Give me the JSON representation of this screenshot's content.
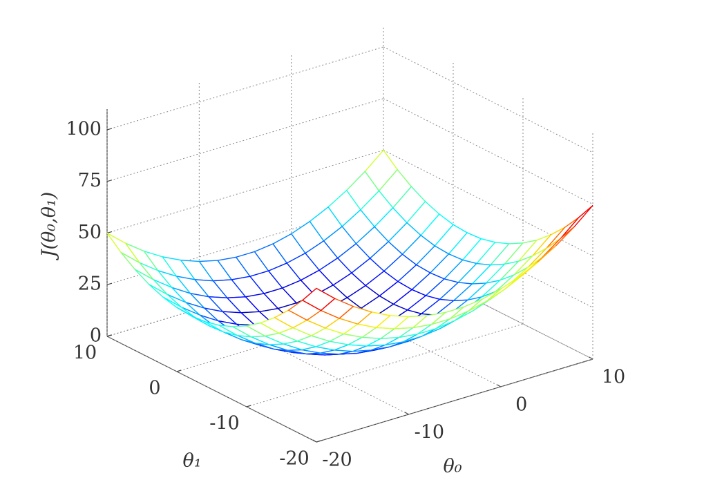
{
  "chart_data": {
    "type": "surface",
    "x_label": "θ₀",
    "y_label": "θ₁",
    "z_label": "J(θ₀,θ₁)",
    "x": [
      -20,
      -18,
      -16,
      -14,
      -12,
      -10,
      -8,
      -6,
      -4,
      -2,
      0,
      2,
      4,
      6,
      8,
      10
    ],
    "y": [
      -20,
      -18,
      -16,
      -14,
      -12,
      -10,
      -8,
      -6,
      -4,
      -2,
      0,
      2,
      4,
      6,
      8,
      10
    ],
    "z": [
      [
        74.4,
        66.8,
        60.3,
        54.9,
        50.5,
        47.3,
        45.1,
        44.0,
        44.0,
        45.1,
        47.3,
        50.5,
        54.9,
        60.3,
        66.8,
        74.4
      ],
      [
        65.2,
        57.6,
        51.1,
        45.7,
        41.3,
        38.1,
        35.9,
        34.8,
        34.8,
        35.9,
        38.1,
        41.3,
        45.7,
        51.1,
        57.6,
        65.2
      ],
      [
        57.0,
        49.5,
        43.0,
        37.5,
        33.2,
        29.9,
        27.8,
        26.7,
        26.7,
        27.8,
        29.9,
        33.2,
        37.5,
        43.0,
        49.5,
        57.0
      ],
      [
        50.0,
        42.4,
        35.9,
        30.5,
        26.2,
        22.9,
        20.7,
        19.6,
        19.6,
        20.7,
        22.9,
        26.2,
        30.5,
        35.9,
        42.4,
        50.0
      ],
      [
        44.0,
        36.4,
        29.9,
        24.5,
        20.2,
        16.9,
        14.8,
        13.7,
        13.7,
        14.8,
        16.9,
        20.2,
        24.5,
        29.9,
        36.4,
        44.0
      ],
      [
        39.2,
        31.6,
        25.1,
        19.6,
        15.3,
        12.1,
        9.9,
        8.8,
        8.8,
        9.9,
        12.1,
        15.3,
        19.6,
        25.1,
        31.6,
        39.2
      ],
      [
        35.4,
        27.8,
        21.3,
        15.9,
        11.5,
        8.3,
        6.1,
        5.0,
        5.0,
        6.1,
        8.3,
        11.5,
        15.9,
        21.3,
        27.8,
        35.4
      ],
      [
        32.7,
        25.1,
        18.6,
        13.1,
        8.8,
        5.6,
        3.4,
        2.3,
        2.3,
        3.4,
        5.6,
        8.8,
        13.1,
        18.6,
        25.1,
        32.7
      ],
      [
        31.0,
        23.4,
        16.9,
        11.5,
        7.2,
        3.9,
        1.8,
        0.7,
        0.7,
        1.8,
        3.9,
        7.2,
        11.5,
        16.9,
        23.4,
        31.0
      ],
      [
        30.5,
        22.9,
        16.4,
        11.0,
        6.6,
        3.4,
        1.2,
        0.1,
        0.1,
        1.2,
        3.4,
        6.6,
        11.0,
        16.4,
        22.9,
        30.5
      ],
      [
        31.0,
        23.4,
        16.9,
        11.5,
        7.2,
        3.9,
        1.8,
        0.7,
        0.7,
        1.8,
        3.9,
        7.2,
        11.5,
        16.9,
        23.4,
        31.0
      ],
      [
        32.7,
        25.1,
        18.6,
        13.1,
        8.8,
        5.6,
        3.4,
        2.3,
        2.3,
        3.4,
        5.6,
        8.8,
        13.1,
        18.6,
        25.1,
        32.7
      ],
      [
        35.4,
        27.8,
        21.3,
        15.9,
        11.5,
        8.3,
        6.1,
        5.0,
        5.0,
        6.1,
        8.3,
        11.5,
        15.9,
        21.3,
        27.8,
        35.4
      ],
      [
        39.2,
        31.6,
        25.1,
        19.6,
        15.3,
        12.1,
        9.9,
        8.8,
        8.8,
        9.9,
        12.1,
        15.3,
        19.6,
        25.1,
        31.6,
        39.2
      ],
      [
        44.0,
        36.4,
        29.9,
        24.5,
        20.2,
        16.9,
        14.8,
        13.7,
        13.7,
        14.8,
        16.9,
        20.2,
        24.5,
        29.9,
        36.4,
        44.0
      ],
      [
        50.0,
        42.4,
        35.9,
        30.5,
        26.2,
        22.9,
        20.7,
        19.6,
        19.6,
        20.7,
        22.9,
        26.2,
        30.5,
        35.9,
        42.4,
        50.0
      ]
    ],
    "xlim": [
      -20,
      10
    ],
    "ylim": [
      -20,
      10
    ],
    "zlim": [
      0,
      110
    ],
    "xticks": [
      -20,
      -10,
      0,
      10
    ],
    "yticks": [
      -20,
      -10,
      0,
      10
    ],
    "zticks": [
      0,
      25,
      50,
      75,
      100
    ],
    "colormap": "jet",
    "grid": true
  }
}
